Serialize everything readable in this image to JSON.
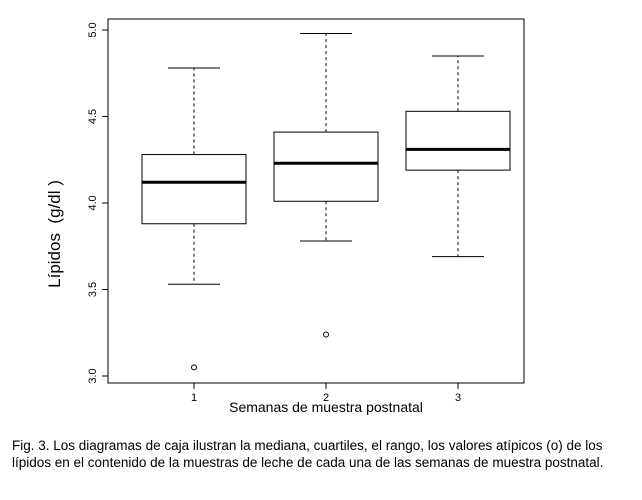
{
  "chart_data": {
    "type": "boxplot",
    "title": "",
    "xlabel": "Semanas de muestra postnatal",
    "ylabel": "Lípidos  (g/dl )",
    "ylim": [
      3.0,
      5.0
    ],
    "y_ticks": [
      "3.0",
      "3.5",
      "4.0",
      "4.5",
      "5.0"
    ],
    "categories": [
      "1",
      "2",
      "3"
    ],
    "boxes": [
      {
        "category": "1",
        "whisker_low": 3.53,
        "q1": 3.88,
        "median": 4.12,
        "q3": 4.28,
        "whisker_high": 4.78,
        "outliers": [
          3.05
        ]
      },
      {
        "category": "2",
        "whisker_low": 3.78,
        "q1": 4.01,
        "median": 4.23,
        "q3": 4.41,
        "whisker_high": 4.98,
        "outliers": [
          3.24
        ]
      },
      {
        "category": "3",
        "whisker_low": 3.69,
        "q1": 4.19,
        "median": 4.31,
        "q3": 4.53,
        "whisker_high": 4.85,
        "outliers": []
      }
    ],
    "grid": false,
    "legend": "none"
  },
  "caption": "Fig. 3. Los diagramas de caja ilustran la mediana, cuartiles, el rango, los valores atípicos (o) de los lípidos en el contenido de la muestras de leche de cada una de las semanas de muestra postnatal."
}
